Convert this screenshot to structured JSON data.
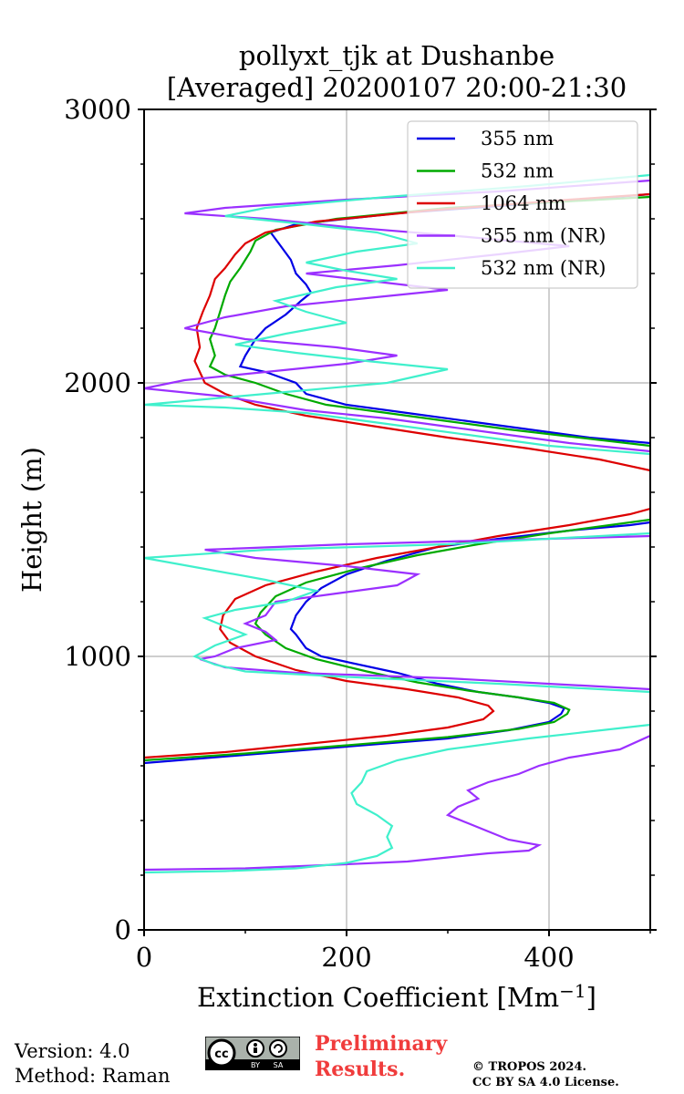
{
  "chart_data": {
    "type": "line",
    "title_line1": "pollyxt_tjk at Dushanbe",
    "title_line2": "[Averaged] 20200107 20:00-21:30",
    "xlabel": "Extinction Coefficient [Mm⁻¹]",
    "ylabel": "Height (m)",
    "xlim": [
      0,
      500
    ],
    "ylim": [
      0,
      3000
    ],
    "xticks": [
      0,
      200,
      400
    ],
    "yticks": [
      0,
      1000,
      2000,
      3000
    ],
    "grid": true,
    "legend_position": "top-right",
    "series": [
      {
        "name": "355 nm",
        "color": "#0000e6",
        "points": [
          [
            0,
            610
          ],
          [
            100,
            640
          ],
          [
            200,
            670
          ],
          [
            300,
            700
          ],
          [
            360,
            730
          ],
          [
            400,
            760
          ],
          [
            412,
            790
          ],
          [
            415,
            810
          ],
          [
            400,
            830
          ],
          [
            370,
            850
          ],
          [
            330,
            870
          ],
          [
            290,
            900
          ],
          [
            250,
            940
          ],
          [
            200,
            980
          ],
          [
            175,
            1000
          ],
          [
            160,
            1030
          ],
          [
            150,
            1080
          ],
          [
            145,
            1100
          ],
          [
            150,
            1150
          ],
          [
            160,
            1200
          ],
          [
            175,
            1250
          ],
          [
            200,
            1300
          ],
          [
            240,
            1350
          ],
          [
            290,
            1400
          ],
          [
            350,
            1430
          ],
          [
            420,
            1460
          ],
          [
            480,
            1480
          ],
          [
            500,
            1490
          ]
        ],
        "points_upper": [
          [
            500,
            1780
          ],
          [
            440,
            1800
          ],
          [
            380,
            1830
          ],
          [
            320,
            1860
          ],
          [
            260,
            1890
          ],
          [
            200,
            1920
          ],
          [
            160,
            1960
          ],
          [
            150,
            2000
          ],
          [
            120,
            2040
          ],
          [
            95,
            2060
          ],
          [
            100,
            2100
          ],
          [
            110,
            2160
          ],
          [
            120,
            2200
          ],
          [
            140,
            2250
          ],
          [
            155,
            2300
          ],
          [
            165,
            2330
          ],
          [
            160,
            2360
          ],
          [
            150,
            2400
          ],
          [
            145,
            2450
          ],
          [
            135,
            2500
          ],
          [
            125,
            2550
          ],
          [
            150,
            2580
          ],
          [
            250,
            2620
          ],
          [
            400,
            2660
          ],
          [
            500,
            2690
          ]
        ]
      },
      {
        "name": "532 nm",
        "color": "#00aa00",
        "points": [
          [
            0,
            620
          ],
          [
            100,
            645
          ],
          [
            200,
            675
          ],
          [
            300,
            705
          ],
          [
            370,
            735
          ],
          [
            405,
            760
          ],
          [
            418,
            790
          ],
          [
            420,
            805
          ],
          [
            405,
            830
          ],
          [
            370,
            850
          ],
          [
            320,
            875
          ],
          [
            270,
            905
          ],
          [
            220,
            945
          ],
          [
            170,
            990
          ],
          [
            140,
            1030
          ],
          [
            120,
            1080
          ],
          [
            110,
            1120
          ],
          [
            115,
            1160
          ],
          [
            130,
            1220
          ],
          [
            160,
            1270
          ],
          [
            210,
            1320
          ],
          [
            270,
            1370
          ],
          [
            330,
            1410
          ],
          [
            400,
            1450
          ],
          [
            460,
            1480
          ],
          [
            500,
            1500
          ]
        ],
        "points_upper": [
          [
            500,
            1770
          ],
          [
            430,
            1800
          ],
          [
            360,
            1830
          ],
          [
            300,
            1860
          ],
          [
            240,
            1890
          ],
          [
            180,
            1920
          ],
          [
            140,
            1960
          ],
          [
            110,
            2000
          ],
          [
            80,
            2030
          ],
          [
            65,
            2060
          ],
          [
            70,
            2100
          ],
          [
            65,
            2160
          ],
          [
            70,
            2200
          ],
          [
            75,
            2260
          ],
          [
            80,
            2320
          ],
          [
            85,
            2370
          ],
          [
            95,
            2420
          ],
          [
            105,
            2480
          ],
          [
            110,
            2520
          ],
          [
            130,
            2560
          ],
          [
            190,
            2600
          ],
          [
            300,
            2640
          ],
          [
            450,
            2670
          ],
          [
            500,
            2680
          ]
        ]
      },
      {
        "name": "1064 nm",
        "color": "#dd0000",
        "points": [
          [
            0,
            630
          ],
          [
            80,
            650
          ],
          [
            160,
            680
          ],
          [
            240,
            710
          ],
          [
            300,
            740
          ],
          [
            335,
            770
          ],
          [
            345,
            800
          ],
          [
            340,
            820
          ],
          [
            310,
            850
          ],
          [
            260,
            880
          ],
          [
            200,
            910
          ],
          [
            150,
            950
          ],
          [
            110,
            1000
          ],
          [
            85,
            1050
          ],
          [
            75,
            1100
          ],
          [
            78,
            1150
          ],
          [
            90,
            1210
          ],
          [
            120,
            1260
          ],
          [
            170,
            1310
          ],
          [
            230,
            1360
          ],
          [
            290,
            1400
          ],
          [
            350,
            1440
          ],
          [
            420,
            1480
          ],
          [
            480,
            1520
          ],
          [
            500,
            1540
          ]
        ],
        "points_upper": [
          [
            500,
            1680
          ],
          [
            450,
            1720
          ],
          [
            380,
            1760
          ],
          [
            300,
            1800
          ],
          [
            230,
            1840
          ],
          [
            160,
            1880
          ],
          [
            110,
            1920
          ],
          [
            80,
            1960
          ],
          [
            60,
            2000
          ],
          [
            55,
            2040
          ],
          [
            50,
            2080
          ],
          [
            55,
            2130
          ],
          [
            52,
            2200
          ],
          [
            58,
            2260
          ],
          [
            65,
            2320
          ],
          [
            70,
            2380
          ],
          [
            80,
            2420
          ],
          [
            90,
            2470
          ],
          [
            100,
            2510
          ],
          [
            120,
            2550
          ],
          [
            170,
            2590
          ],
          [
            280,
            2630
          ],
          [
            420,
            2670
          ],
          [
            500,
            2690
          ]
        ]
      },
      {
        "name": "355 nm (NR)",
        "color": "#9b30ff",
        "points": [
          [
            0,
            220
          ],
          [
            100,
            225
          ],
          [
            200,
            240
          ],
          [
            260,
            250
          ],
          [
            300,
            265
          ],
          [
            340,
            280
          ],
          [
            380,
            290
          ],
          [
            390,
            310
          ],
          [
            360,
            330
          ],
          [
            340,
            360
          ],
          [
            320,
            390
          ],
          [
            300,
            420
          ],
          [
            310,
            450
          ],
          [
            330,
            480
          ],
          [
            320,
            510
          ],
          [
            340,
            540
          ],
          [
            370,
            570
          ],
          [
            390,
            600
          ],
          [
            420,
            630
          ],
          [
            470,
            660
          ],
          [
            500,
            710
          ]
        ],
        "points_upper": [
          [
            500,
            880
          ],
          [
            300,
            920
          ],
          [
            150,
            940
          ],
          [
            80,
            960
          ],
          [
            55,
            990
          ],
          [
            70,
            1000
          ],
          [
            90,
            1030
          ],
          [
            130,
            1060
          ],
          [
            120,
            1090
          ],
          [
            100,
            1120
          ],
          [
            120,
            1150
          ],
          [
            130,
            1200
          ],
          [
            190,
            1230
          ],
          [
            250,
            1260
          ],
          [
            270,
            1300
          ],
          [
            200,
            1330
          ],
          [
            110,
            1360
          ],
          [
            60,
            1390
          ],
          [
            200,
            1410
          ],
          [
            400,
            1430
          ],
          [
            500,
            1440
          ]
        ],
        "points_top": [
          [
            500,
            1750
          ],
          [
            420,
            1780
          ],
          [
            360,
            1810
          ],
          [
            300,
            1840
          ],
          [
            240,
            1870
          ],
          [
            160,
            1900
          ],
          [
            80,
            1950
          ],
          [
            0,
            1980
          ],
          [
            40,
            2010
          ],
          [
            120,
            2040
          ],
          [
            200,
            2070
          ],
          [
            250,
            2100
          ],
          [
            190,
            2130
          ],
          [
            100,
            2160
          ],
          [
            40,
            2200
          ],
          [
            80,
            2240
          ],
          [
            140,
            2280
          ],
          [
            220,
            2310
          ],
          [
            300,
            2340
          ],
          [
            230,
            2370
          ],
          [
            160,
            2400
          ],
          [
            250,
            2430
          ],
          [
            350,
            2470
          ],
          [
            420,
            2500
          ],
          [
            300,
            2540
          ],
          [
            200,
            2570
          ],
          [
            120,
            2600
          ],
          [
            40,
            2620
          ],
          [
            80,
            2640
          ],
          [
            200,
            2670
          ],
          [
            350,
            2700
          ],
          [
            500,
            2740
          ]
        ]
      },
      {
        "name": "532 nm (NR)",
        "color": "#40f0cc",
        "points": [
          [
            0,
            210
          ],
          [
            80,
            215
          ],
          [
            150,
            225
          ],
          [
            200,
            245
          ],
          [
            230,
            270
          ],
          [
            245,
            300
          ],
          [
            240,
            340
          ],
          [
            245,
            380
          ],
          [
            230,
            420
          ],
          [
            210,
            460
          ],
          [
            205,
            500
          ],
          [
            215,
            540
          ],
          [
            220,
            580
          ],
          [
            250,
            620
          ],
          [
            300,
            660
          ],
          [
            380,
            700
          ],
          [
            500,
            750
          ]
        ],
        "points_upper": [
          [
            500,
            870
          ],
          [
            350,
            900
          ],
          [
            200,
            925
          ],
          [
            100,
            945
          ],
          [
            70,
            970
          ],
          [
            50,
            1000
          ],
          [
            70,
            1040
          ],
          [
            100,
            1080
          ],
          [
            80,
            1110
          ],
          [
            60,
            1140
          ],
          [
            90,
            1170
          ],
          [
            140,
            1200
          ],
          [
            170,
            1240
          ],
          [
            120,
            1280
          ],
          [
            60,
            1320
          ],
          [
            0,
            1360
          ],
          [
            120,
            1390
          ],
          [
            300,
            1410
          ],
          [
            500,
            1450
          ]
        ],
        "points_top": [
          [
            500,
            1740
          ],
          [
            400,
            1770
          ],
          [
            340,
            1800
          ],
          [
            280,
            1830
          ],
          [
            220,
            1860
          ],
          [
            160,
            1890
          ],
          [
            80,
            1910
          ],
          [
            0,
            1920
          ],
          [
            120,
            1960
          ],
          [
            240,
            2000
          ],
          [
            300,
            2050
          ],
          [
            220,
            2080
          ],
          [
            150,
            2110
          ],
          [
            90,
            2140
          ],
          [
            140,
            2180
          ],
          [
            200,
            2220
          ],
          [
            160,
            2260
          ],
          [
            130,
            2300
          ],
          [
            190,
            2350
          ],
          [
            250,
            2380
          ],
          [
            200,
            2410
          ],
          [
            160,
            2440
          ],
          [
            210,
            2480
          ],
          [
            270,
            2510
          ],
          [
            230,
            2550
          ],
          [
            160,
            2580
          ],
          [
            80,
            2610
          ],
          [
            120,
            2640
          ],
          [
            240,
            2680
          ],
          [
            380,
            2720
          ],
          [
            500,
            2760
          ]
        ]
      }
    ]
  },
  "footer": {
    "version": "Version: 4.0",
    "method": "Method: Raman",
    "preliminary_line1": "Preliminary",
    "preliminary_line2": "Results.",
    "copyright_line1": "© TROPOS 2024.",
    "copyright_line2": "CC BY SA 4.0 License.",
    "badge_cc": "cc",
    "badge_by": "BY",
    "badge_sa": "SA"
  }
}
